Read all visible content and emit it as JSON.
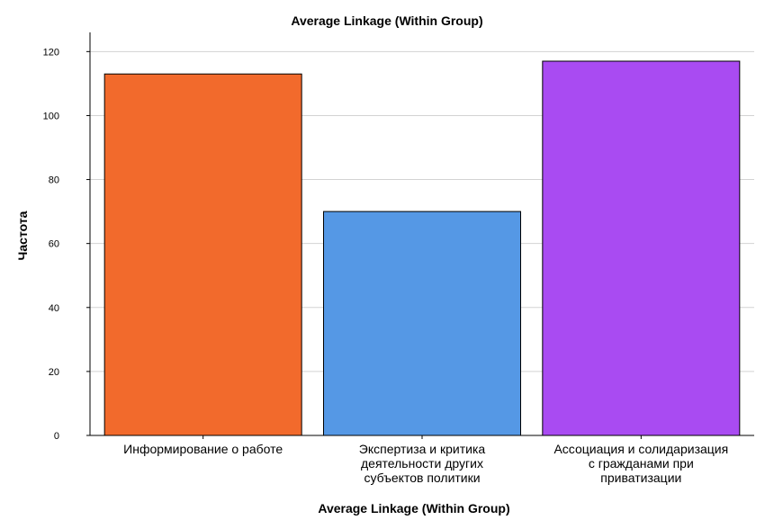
{
  "chart_data": {
    "type": "bar",
    "title": "Average Linkage (Within Group)",
    "xlabel": "Average Linkage (Within Group)",
    "ylabel": "Частота",
    "ylim": [
      0,
      126
    ],
    "yticks": [
      0,
      20,
      40,
      60,
      80,
      100,
      120
    ],
    "grid": true,
    "legend": "none",
    "categories": [
      "Информирование о работе",
      "Экспертиза и критика деятельности других субъектов политики",
      "Ассоциация и солидаризация с гражданами при приватизации"
    ],
    "category_lines": [
      [
        "Информирование о работе"
      ],
      [
        "Экспертиза и критика",
        "деятельности других",
        "субъектов политики"
      ],
      [
        "Ассоциация и солидаризация",
        "с гражданами при",
        "приватизации"
      ]
    ],
    "values": [
      113,
      70,
      117
    ],
    "colors": [
      "#F26A2C",
      "#5598E5",
      "#A94BF2"
    ]
  }
}
